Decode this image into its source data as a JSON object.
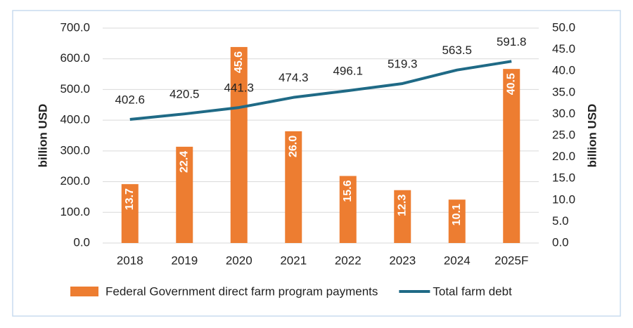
{
  "chart_data": {
    "type": "bar",
    "categories": [
      "2018",
      "2019",
      "2020",
      "2021",
      "2022",
      "2023",
      "2024",
      "2025F"
    ],
    "series": [
      {
        "name": "Federal Government direct farm program payments",
        "type": "bar",
        "axis": "y2",
        "color": "#ed7d31",
        "values": [
          13.7,
          22.4,
          45.6,
          26.0,
          15.6,
          12.3,
          10.1,
          40.5
        ],
        "value_labels": [
          "13.7",
          "22.4",
          "45.6",
          "26.0",
          "15.6",
          "12.3",
          "10.1",
          "40.5"
        ]
      },
      {
        "name": "Total farm debt",
        "type": "line",
        "axis": "y",
        "color": "#1f6a86",
        "values": [
          402.6,
          420.5,
          441.3,
          474.3,
          496.1,
          519.3,
          563.5,
          591.8
        ],
        "value_labels": [
          "402.6",
          "420.5",
          "441.3",
          "474.3",
          "496.1",
          "519.3",
          "563.5",
          "591.8"
        ]
      }
    ],
    "y_label": "billion USD",
    "y2_label": "billion USD",
    "ylim": [
      0,
      700
    ],
    "yticks": [
      {
        "value": 0,
        "label": "0.0"
      },
      {
        "value": 100,
        "label": "100.0"
      },
      {
        "value": 200,
        "label": "200.0"
      },
      {
        "value": 300,
        "label": "300.0"
      },
      {
        "value": 400,
        "label": "400.0"
      },
      {
        "value": 500,
        "label": "500.0"
      },
      {
        "value": 600,
        "label": "600.0"
      },
      {
        "value": 700,
        "label": "700.0"
      }
    ],
    "y2lim": [
      0,
      50
    ],
    "y2ticks": [
      {
        "value": 0,
        "label": "0.0"
      },
      {
        "value": 5,
        "label": "5.0"
      },
      {
        "value": 10,
        "label": "10.0"
      },
      {
        "value": 15,
        "label": "15.0"
      },
      {
        "value": 20,
        "label": "20.0"
      },
      {
        "value": 25,
        "label": "25.0"
      },
      {
        "value": 30,
        "label": "30.0"
      },
      {
        "value": 35,
        "label": "35.0"
      },
      {
        "value": 40,
        "label": "40.0"
      },
      {
        "value": 45,
        "label": "45.0"
      },
      {
        "value": 50,
        "label": "50.0"
      }
    ],
    "grid": true,
    "legend": "bottom"
  }
}
